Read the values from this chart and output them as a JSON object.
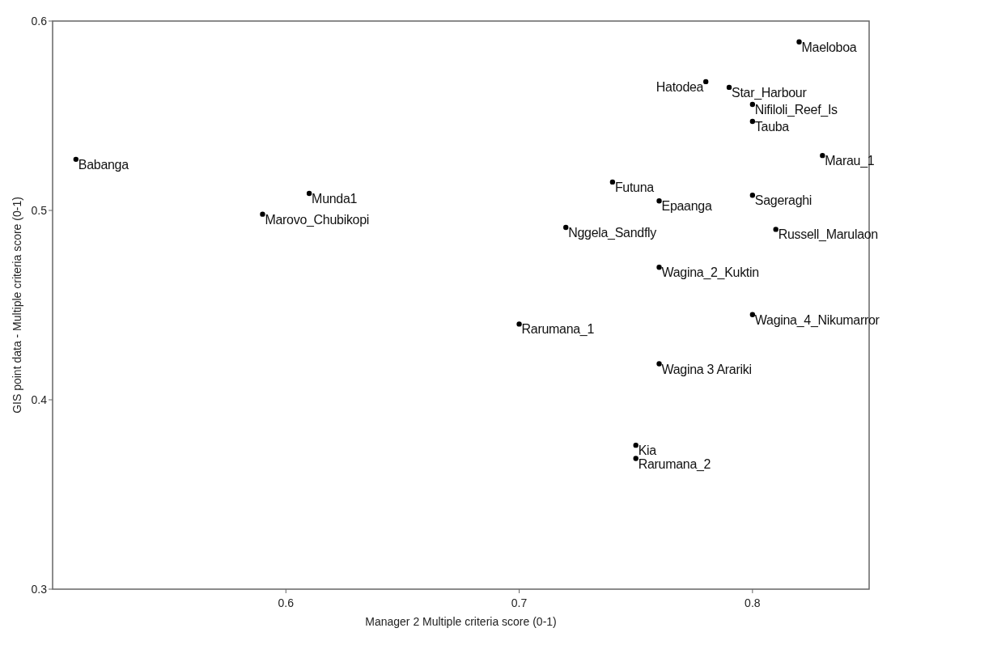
{
  "chart_data": {
    "type": "scatter",
    "xlabel": "Manager 2 Multiple criteria score (0-1)",
    "ylabel": "GIS point data - Multiple criteria score (0-1)",
    "xlim": [
      0.5,
      0.85
    ],
    "xticks": [
      0.6,
      0.7,
      0.8
    ],
    "ylim": [
      0.3,
      0.6
    ],
    "yticks": [
      0.3,
      0.4,
      0.5,
      0.6
    ],
    "grid": false,
    "marker": "circle",
    "series": [
      {
        "color": "#000000",
        "x": [
          0.51,
          0.61,
          0.59,
          0.82,
          0.78,
          0.79,
          0.8,
          0.8,
          0.83,
          0.74,
          0.76,
          0.8,
          0.72,
          0.81,
          0.76,
          0.8,
          0.7,
          0.76,
          0.75,
          0.75
        ],
        "values": [
          0.527,
          0.509,
          0.498,
          0.589,
          0.568,
          0.565,
          0.556,
          0.547,
          0.529,
          0.515,
          0.505,
          0.508,
          0.491,
          0.49,
          0.47,
          0.445,
          0.44,
          0.419,
          0.376,
          0.369
        ]
      }
    ],
    "annotations": [
      {
        "text": "Babanga",
        "x": 0.51,
        "y": 0.527
      },
      {
        "text": "Munda1",
        "x": 0.61,
        "y": 0.509
      },
      {
        "text": "Marovo_Chubikopi",
        "x": 0.59,
        "y": 0.498
      },
      {
        "text": "Maeloboa",
        "x": 0.82,
        "y": 0.589
      },
      {
        "text": "Hatodea",
        "x": 0.78,
        "y": 0.568
      },
      {
        "text": "Star_Harbour",
        "x": 0.79,
        "y": 0.565
      },
      {
        "text": "Nifiloli_Reef_Is",
        "x": 0.8,
        "y": 0.556
      },
      {
        "text": "Tauba",
        "x": 0.8,
        "y": 0.547
      },
      {
        "text": "Marau_1",
        "x": 0.83,
        "y": 0.529
      },
      {
        "text": "Futuna",
        "x": 0.74,
        "y": 0.515
      },
      {
        "text": "Epaanga",
        "x": 0.76,
        "y": 0.505
      },
      {
        "text": "Sageraghi",
        "x": 0.8,
        "y": 0.508
      },
      {
        "text": "Nggela_Sandfly",
        "x": 0.72,
        "y": 0.491
      },
      {
        "text": "Russell_Marulaon",
        "x": 0.81,
        "y": 0.49
      },
      {
        "text": "Wagina_2_Kuktin",
        "x": 0.76,
        "y": 0.47
      },
      {
        "text": "Wagina_4_Nikumarror",
        "x": 0.8,
        "y": 0.445
      },
      {
        "text": "Rarumana_1",
        "x": 0.7,
        "y": 0.44
      },
      {
        "text": "Wagina 3 Arariki",
        "x": 0.76,
        "y": 0.419
      },
      {
        "text": "Kia",
        "x": 0.75,
        "y": 0.376
      },
      {
        "text": "Rarumana_2",
        "x": 0.75,
        "y": 0.369
      }
    ]
  }
}
